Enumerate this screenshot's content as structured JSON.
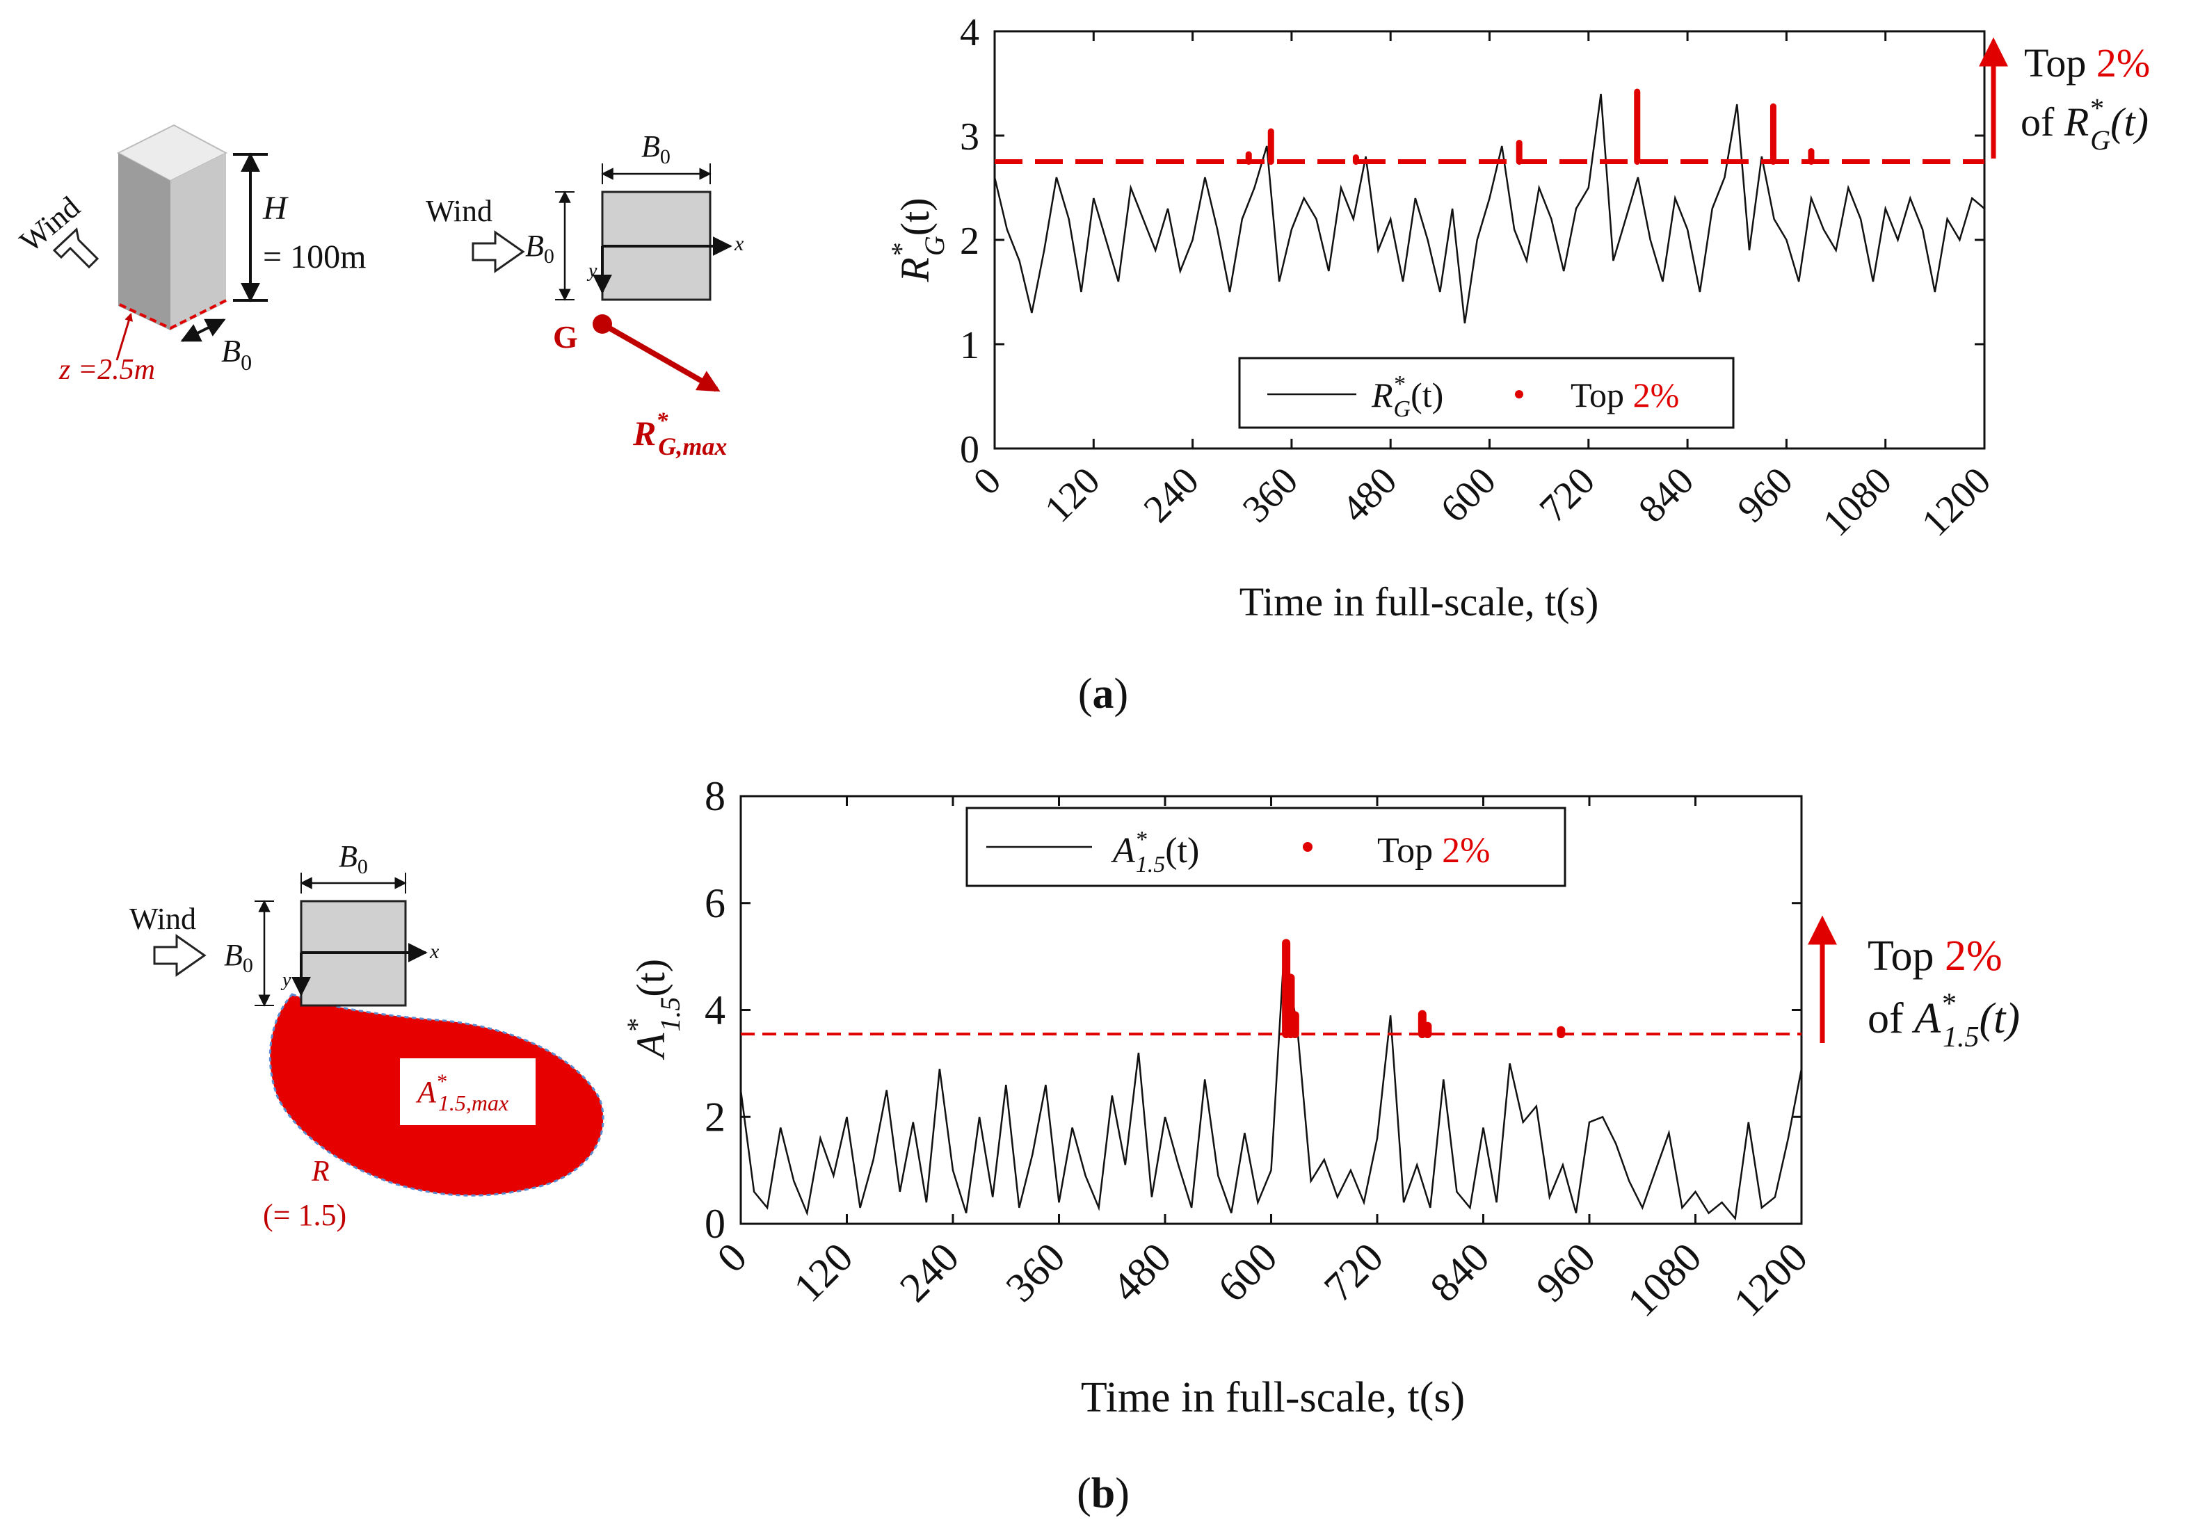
{
  "colors": {
    "red": "#e00000",
    "dark_red": "#c00000",
    "black": "#111111",
    "gray_fill": "#d0d0d0",
    "outline_blue": "#5b8bd0"
  },
  "panel_a": {
    "caption_open": "(",
    "caption_letter": "a",
    "caption_close": ")",
    "schematic_3d": {
      "wind_label": "Wind",
      "height_symbol": "H",
      "height_value": "= 100m",
      "width_symbol": "B",
      "width_sub": "0",
      "z_label": "z =2.5m"
    },
    "plan_view": {
      "wind_label": "Wind",
      "b_symbol": "B",
      "b_sub": "0",
      "x_label": "x",
      "y_label": "y",
      "point_label": "G",
      "vector_main": "R",
      "vector_sup": "*",
      "vector_sub": "G,max"
    },
    "annotation": {
      "top_text": "Top ",
      "percent": "2%",
      "of_text": "of ",
      "symbol": "R",
      "sup": "*",
      "sub": "G",
      "arg": "(t)"
    }
  },
  "panel_b": {
    "caption_open": "(",
    "caption_letter": "b",
    "caption_close": ")",
    "plan_view": {
      "wind_label": "Wind",
      "b_symbol": "B",
      "b_sub": "0",
      "x_label": "x",
      "y_label": "y",
      "area_main": "A",
      "area_sup": "*",
      "area_sub": "1.5,max",
      "r_label": "R",
      "r_value": "(= 1.5)"
    },
    "annotation": {
      "top_text": "Top ",
      "percent": "2%",
      "of_text": "of ",
      "symbol": "A",
      "sup": "*",
      "sub": "1.5",
      "arg": "(t)"
    }
  },
  "chart_data": [
    {
      "type": "line",
      "xlabel": "Time in full-scale, t(s)",
      "ylabel": {
        "main": "R",
        "sup": "*",
        "sub": "G",
        "arg": "(t)"
      },
      "xlim": [
        0,
        1200
      ],
      "ylim": [
        0,
        4
      ],
      "xticks": [
        "0",
        "120",
        "240",
        "360",
        "480",
        "600",
        "720",
        "840",
        "960",
        "1080",
        "1200"
      ],
      "yticks": [
        "0",
        "1",
        "2",
        "3",
        "4"
      ],
      "threshold": 2.75,
      "legend": {
        "placement": "bottom-center",
        "line_label": {
          "main": "R",
          "sup": "*",
          "sub": "G",
          "arg": "(t)"
        },
        "dot_label_text": "Top ",
        "dot_label_percent": "2%"
      },
      "series": [
        {
          "x": [
            0,
            15,
            30,
            45,
            60,
            75,
            90,
            105,
            120,
            135,
            150,
            165,
            180,
            195,
            210,
            225,
            240,
            255,
            270,
            285,
            300,
            315,
            330,
            345,
            360,
            375,
            390,
            405,
            420,
            435,
            450,
            465,
            480,
            495,
            510,
            525,
            540,
            555,
            570,
            585,
            600,
            615,
            630,
            645,
            660,
            675,
            690,
            705,
            720,
            735,
            750,
            765,
            780,
            795,
            810,
            825,
            840,
            855,
            870,
            885,
            900,
            915,
            930,
            945,
            960,
            975,
            990,
            1005,
            1020,
            1035,
            1050,
            1065,
            1080,
            1095,
            1110,
            1125,
            1140,
            1155,
            1170,
            1185,
            1200
          ],
          "y": [
            2.6,
            2.1,
            1.8,
            1.3,
            1.9,
            2.6,
            2.2,
            1.5,
            2.4,
            2.0,
            1.6,
            2.5,
            2.2,
            1.9,
            2.3,
            1.7,
            2.0,
            2.6,
            2.1,
            1.5,
            2.2,
            2.5,
            2.9,
            1.6,
            2.1,
            2.4,
            2.2,
            1.7,
            2.5,
            2.2,
            2.8,
            1.9,
            2.2,
            1.6,
            2.4,
            2.0,
            1.5,
            2.3,
            1.2,
            2.0,
            2.4,
            2.9,
            2.1,
            1.8,
            2.5,
            2.2,
            1.7,
            2.3,
            2.5,
            3.4,
            1.8,
            2.2,
            2.6,
            2.0,
            1.6,
            2.4,
            2.1,
            1.5,
            2.3,
            2.6,
            3.3,
            1.9,
            2.8,
            2.2,
            2.0,
            1.6,
            2.4,
            2.1,
            1.9,
            2.5,
            2.2,
            1.6,
            2.3,
            2.0,
            2.4,
            2.1,
            1.5,
            2.2,
            2.0,
            2.4,
            2.3
          ]
        }
      ],
      "top_points": [
        {
          "x": 308,
          "y": 2.82
        },
        {
          "x": 335,
          "y": 3.04
        },
        {
          "x": 438,
          "y": 2.79
        },
        {
          "x": 636,
          "y": 2.93
        },
        {
          "x": 779,
          "y": 3.42
        },
        {
          "x": 944,
          "y": 3.28
        },
        {
          "x": 990,
          "y": 2.85
        }
      ]
    },
    {
      "type": "line",
      "xlabel": "Time in full-scale, t(s)",
      "ylabel": {
        "main": "A",
        "sup": "*",
        "sub": "1.5",
        "arg": "(t)"
      },
      "xlim": [
        0,
        1200
      ],
      "ylim": [
        0,
        8
      ],
      "xticks": [
        "0",
        "120",
        "240",
        "360",
        "480",
        "600",
        "720",
        "840",
        "960",
        "1080",
        "1200"
      ],
      "yticks": [
        "0",
        "2",
        "4",
        "6",
        "8"
      ],
      "threshold": 3.55,
      "legend": {
        "placement": "top-center",
        "line_label": {
          "main": "A",
          "sup": "*",
          "sub": "1.5",
          "arg": "(t)"
        },
        "dot_label_text": "Top ",
        "dot_label_percent": "2%"
      },
      "series": [
        {
          "x": [
            0,
            15,
            30,
            45,
            60,
            75,
            90,
            105,
            120,
            135,
            150,
            165,
            180,
            195,
            210,
            225,
            240,
            255,
            270,
            285,
            300,
            315,
            330,
            345,
            360,
            375,
            390,
            405,
            420,
            435,
            450,
            465,
            480,
            495,
            510,
            525,
            540,
            555,
            570,
            585,
            600,
            615,
            630,
            645,
            660,
            675,
            690,
            705,
            720,
            735,
            750,
            765,
            780,
            795,
            810,
            825,
            840,
            855,
            870,
            885,
            900,
            915,
            930,
            945,
            960,
            975,
            990,
            1005,
            1020,
            1035,
            1050,
            1065,
            1080,
            1095,
            1110,
            1125,
            1140,
            1155,
            1170,
            1185,
            1200
          ],
          "y": [
            2.5,
            0.6,
            0.3,
            1.8,
            0.8,
            0.2,
            1.6,
            0.9,
            2.0,
            0.3,
            1.2,
            2.5,
            0.6,
            1.9,
            0.4,
            2.9,
            1.0,
            0.2,
            2.0,
            0.5,
            2.6,
            0.3,
            1.3,
            2.6,
            0.4,
            1.8,
            0.9,
            0.3,
            2.4,
            1.1,
            3.2,
            0.5,
            2.0,
            1.1,
            0.3,
            2.7,
            0.9,
            0.2,
            1.7,
            0.4,
            1.0,
            5.2,
            3.6,
            0.8,
            1.2,
            0.5,
            1.0,
            0.4,
            1.6,
            3.9,
            0.4,
            1.1,
            0.3,
            2.7,
            0.6,
            0.3,
            1.8,
            0.4,
            3.0,
            1.9,
            2.2,
            0.5,
            1.1,
            0.2,
            1.9,
            2.0,
            1.5,
            0.8,
            0.3,
            1.0,
            1.7,
            0.3,
            0.6,
            0.2,
            0.4,
            0.1,
            1.9,
            0.3,
            0.5,
            1.6,
            2.9
          ]
        }
      ],
      "top_points": [
        {
          "x": 617,
          "y": 5.25
        },
        {
          "x": 622,
          "y": 4.6
        },
        {
          "x": 627,
          "y": 3.9
        },
        {
          "x": 771,
          "y": 3.92
        },
        {
          "x": 777,
          "y": 3.7
        },
        {
          "x": 928,
          "y": 3.62
        }
      ]
    }
  ]
}
